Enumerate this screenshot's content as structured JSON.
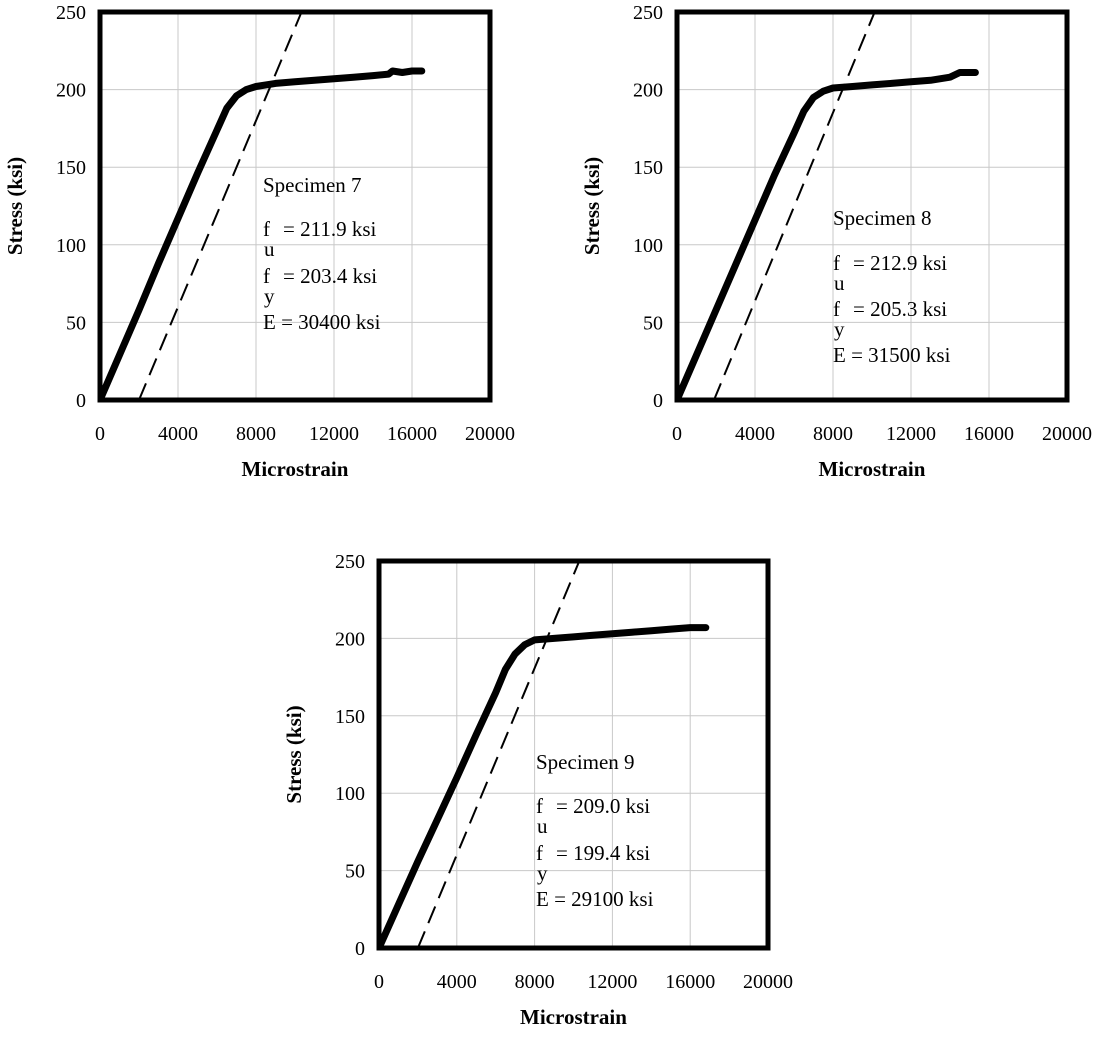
{
  "chart_data": [
    {
      "type": "line",
      "xlabel": "Microstrain",
      "ylabel": "Stress (ksi)",
      "xlim": [
        0,
        20000
      ],
      "ylim": [
        0,
        250
      ],
      "xticks": [
        "0",
        "4000",
        "8000",
        "12000",
        "16000",
        "20000"
      ],
      "yticks": [
        "0",
        "50",
        "100",
        "150",
        "200",
        "250"
      ],
      "grid": true,
      "annotations": {
        "title": "Specimen 7",
        "fu_symbol": "f",
        "fu_sub": "u",
        "fu_value": "= 211.9 ksi",
        "fy_symbol": "f",
        "fy_sub": "y",
        "fy_value": "= 203.4 ksi",
        "modulus": "E = 30400 ksi"
      },
      "series": [
        {
          "style": "solid",
          "x": [
            0,
            1000,
            2000,
            3000,
            4000,
            5000,
            6000,
            6500,
            7000,
            7500,
            8000,
            9000,
            10000,
            11000,
            12000,
            13000,
            14000,
            14800,
            15000,
            15500,
            16000,
            16500
          ],
          "y": [
            0,
            29,
            58,
            88,
            117,
            146,
            174,
            188,
            196,
            200,
            202,
            204,
            205,
            206,
            207,
            208,
            209,
            210,
            212,
            211,
            212,
            212
          ]
        },
        {
          "style": "dashed",
          "x": [
            2000,
            10500
          ],
          "y": [
            0,
            255
          ]
        }
      ]
    },
    {
      "type": "line",
      "xlabel": "Microstrain",
      "ylabel": "Stress (ksi)",
      "xlim": [
        0,
        20000
      ],
      "ylim": [
        0,
        250
      ],
      "xticks": [
        "0",
        "4000",
        "8000",
        "12000",
        "16000",
        "20000"
      ],
      "yticks": [
        "0",
        "50",
        "100",
        "150",
        "200",
        "250"
      ],
      "grid": true,
      "annotations": {
        "title": "Specimen 8",
        "fu_symbol": "f",
        "fu_sub": "u",
        "fu_value": "= 212.9 ksi",
        "fy_symbol": "f",
        "fy_sub": "y",
        "fy_value": "= 205.3 ksi",
        "modulus": "E = 31500 ksi"
      },
      "series": [
        {
          "style": "solid",
          "x": [
            0,
            1000,
            2000,
            3000,
            4000,
            5000,
            6000,
            6500,
            7000,
            7500,
            8000,
            9000,
            10000,
            11000,
            12000,
            13000,
            14000,
            14500,
            15000,
            15300
          ],
          "y": [
            0,
            29,
            58,
            87,
            116,
            145,
            172,
            186,
            195,
            199,
            201,
            202,
            203,
            204,
            205,
            206,
            208,
            211,
            211,
            211
          ]
        },
        {
          "style": "dashed",
          "x": [
            1900,
            10300
          ],
          "y": [
            0,
            255
          ]
        }
      ]
    },
    {
      "type": "line",
      "xlabel": "Microstrain",
      "ylabel": "Stress (ksi)",
      "xlim": [
        0,
        20000
      ],
      "ylim": [
        0,
        250
      ],
      "xticks": [
        "0",
        "4000",
        "8000",
        "12000",
        "16000",
        "20000"
      ],
      "yticks": [
        "0",
        "50",
        "100",
        "150",
        "200",
        "250"
      ],
      "grid": true,
      "annotations": {
        "title": "Specimen 9",
        "fu_symbol": "f",
        "fu_sub": "u",
        "fu_value": "= 209.0 ksi",
        "fy_symbol": "f",
        "fy_sub": "y",
        "fy_value": "= 199.4 ksi",
        "modulus": "E = 29100 ksi"
      },
      "series": [
        {
          "style": "solid",
          "x": [
            0,
            1000,
            2000,
            3000,
            4000,
            5000,
            6000,
            6500,
            7000,
            7500,
            8000,
            9000,
            10000,
            11000,
            12000,
            13000,
            14000,
            15000,
            16000,
            16800
          ],
          "y": [
            0,
            28,
            56,
            83,
            110,
            138,
            165,
            180,
            190,
            196,
            199,
            200,
            201,
            202,
            203,
            204,
            205,
            206,
            207,
            207
          ]
        },
        {
          "style": "dashed",
          "x": [
            2000,
            10300
          ],
          "y": [
            0,
            250
          ]
        }
      ]
    }
  ]
}
